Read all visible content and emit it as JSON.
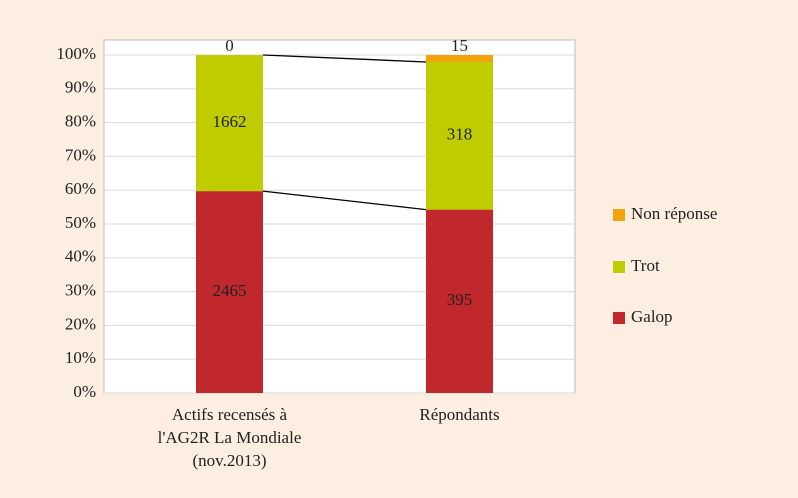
{
  "chart_data": {
    "type": "stacked_percent_bar",
    "categories": [
      "Actifs recensés à\nl'AG2R La Mondiale\n(nov.2013)",
      "Répondants"
    ],
    "series": [
      {
        "name": "Galop",
        "color": "#c0282d",
        "label_color": "#ffffff",
        "values": [
          2465,
          395
        ]
      },
      {
        "name": "Trot",
        "color": "#bfcc00",
        "label_color": "#222222",
        "values": [
          1662,
          318
        ]
      },
      {
        "name": "Non réponse",
        "color": "#f0a30a",
        "label_color": "#222222",
        "values": [
          0,
          15
        ]
      }
    ],
    "ylim": [
      0,
      100
    ],
    "yticks": [
      {
        "value": 0,
        "label": "0%"
      },
      {
        "value": 10,
        "label": "10%"
      },
      {
        "value": 20,
        "label": "20%"
      },
      {
        "value": 30,
        "label": "30%"
      },
      {
        "value": 40,
        "label": "40%"
      },
      {
        "value": 50,
        "label": "50%"
      },
      {
        "value": 60,
        "label": "60%"
      },
      {
        "value": 70,
        "label": "70%"
      },
      {
        "value": 80,
        "label": "80%"
      },
      {
        "value": 90,
        "label": "90%"
      },
      {
        "value": 100,
        "label": "100%"
      }
    ],
    "grid": true,
    "legend": "right"
  }
}
